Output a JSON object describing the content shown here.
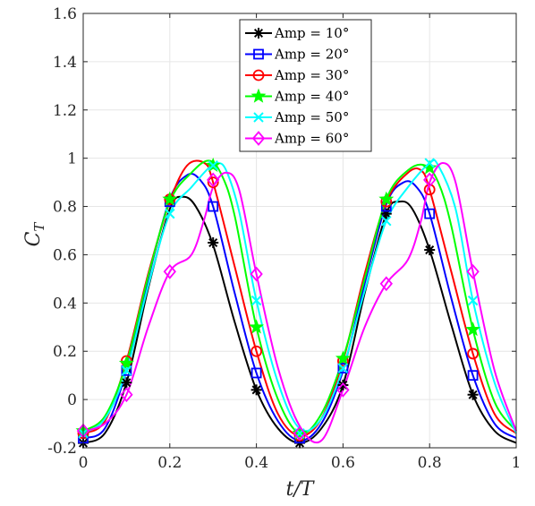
{
  "chart_data": {
    "type": "line",
    "xlabel": "t/T",
    "ylabel": "C",
    "ylabel_subscript": "T",
    "xlim": [
      0,
      1
    ],
    "ylim": [
      -0.2,
      1.6
    ],
    "xticks": [
      0,
      0.2,
      0.4,
      0.6,
      0.8,
      1
    ],
    "xtick_labels": [
      "0",
      "0.2",
      "0.4",
      "0.6",
      "0.8",
      "1"
    ],
    "yticks": [
      -0.2,
      0,
      0.2,
      0.4,
      0.6,
      0.8,
      1,
      1.2,
      1.4,
      1.6
    ],
    "ytick_labels": [
      "-0.2",
      "0",
      "0.2",
      "0.4",
      "0.6",
      "0.8",
      "1",
      "1.2",
      "1.4",
      "1.6"
    ],
    "grid": true,
    "legend_position": "top-center",
    "marker_x": [
      0,
      0.1,
      0.2,
      0.3,
      0.4,
      0.5,
      0.6,
      0.7,
      0.8,
      0.9
    ],
    "series": [
      {
        "name": "Amp = 10°",
        "color": "#000000",
        "marker": "asterisk",
        "x": [
          0,
          0.05,
          0.1,
          0.15,
          0.2,
          0.23,
          0.26,
          0.3,
          0.35,
          0.4,
          0.45,
          0.5,
          0.55,
          0.6,
          0.65,
          0.7,
          0.73,
          0.76,
          0.8,
          0.85,
          0.9,
          0.95,
          1.0
        ],
        "y": [
          -0.18,
          -0.14,
          0.07,
          0.46,
          0.79,
          0.84,
          0.8,
          0.64,
          0.32,
          0.04,
          -0.12,
          -0.18,
          -0.12,
          0.06,
          0.44,
          0.77,
          0.82,
          0.79,
          0.62,
          0.31,
          0.02,
          -0.13,
          -0.18
        ],
        "markers": [
          -0.18,
          0.07,
          0.83,
          0.65,
          0.04,
          -0.18,
          0.06,
          0.77,
          0.62,
          0.02
        ]
      },
      {
        "name": "Amp = 20°",
        "color": "#0000FF",
        "marker": "square",
        "x": [
          0,
          0.05,
          0.1,
          0.15,
          0.2,
          0.24,
          0.27,
          0.3,
          0.35,
          0.4,
          0.45,
          0.5,
          0.55,
          0.6,
          0.65,
          0.7,
          0.74,
          0.77,
          0.8,
          0.85,
          0.9,
          0.95,
          1.0
        ],
        "y": [
          -0.16,
          -0.12,
          0.12,
          0.5,
          0.83,
          0.93,
          0.91,
          0.8,
          0.44,
          0.11,
          -0.09,
          -0.17,
          -0.1,
          0.12,
          0.48,
          0.81,
          0.9,
          0.88,
          0.77,
          0.42,
          0.1,
          -0.1,
          -0.16
        ],
        "markers": [
          -0.16,
          0.12,
          0.82,
          0.8,
          0.11,
          -0.16,
          0.13,
          0.8,
          0.77,
          0.1
        ]
      },
      {
        "name": "Amp = 30°",
        "color": "#FF0000",
        "marker": "circle",
        "x": [
          0,
          0.05,
          0.1,
          0.15,
          0.2,
          0.24,
          0.28,
          0.3,
          0.35,
          0.4,
          0.45,
          0.5,
          0.55,
          0.6,
          0.65,
          0.7,
          0.75,
          0.78,
          0.8,
          0.85,
          0.9,
          0.95,
          1.0
        ],
        "y": [
          -0.14,
          -0.09,
          0.16,
          0.52,
          0.82,
          0.97,
          0.98,
          0.9,
          0.55,
          0.2,
          -0.06,
          -0.15,
          -0.08,
          0.16,
          0.52,
          0.82,
          0.94,
          0.95,
          0.87,
          0.53,
          0.19,
          -0.06,
          -0.14
        ],
        "markers": [
          -0.14,
          0.16,
          0.83,
          0.9,
          0.2,
          -0.15,
          0.16,
          0.82,
          0.87,
          0.19
        ]
      },
      {
        "name": "Amp = 40°",
        "color": "#00FF00",
        "marker": "pentagram",
        "x": [
          0,
          0.05,
          0.1,
          0.15,
          0.2,
          0.25,
          0.29,
          0.32,
          0.35,
          0.4,
          0.45,
          0.5,
          0.55,
          0.6,
          0.65,
          0.7,
          0.75,
          0.79,
          0.82,
          0.85,
          0.9,
          0.95,
          1.0
        ],
        "y": [
          -0.13,
          -0.07,
          0.15,
          0.51,
          0.82,
          0.94,
          0.99,
          0.93,
          0.76,
          0.3,
          0.0,
          -0.14,
          -0.06,
          0.17,
          0.5,
          0.83,
          0.95,
          0.97,
          0.9,
          0.72,
          0.29,
          -0.01,
          -0.13
        ],
        "markers": [
          -0.13,
          0.15,
          0.83,
          0.97,
          0.3,
          -0.14,
          0.17,
          0.83,
          0.96,
          0.29
        ]
      },
      {
        "name": "Amp = 50°",
        "color": "#00FFFF",
        "marker": "x",
        "x": [
          0,
          0.05,
          0.1,
          0.15,
          0.2,
          0.25,
          0.29,
          0.31,
          0.33,
          0.36,
          0.4,
          0.45,
          0.5,
          0.55,
          0.6,
          0.65,
          0.7,
          0.75,
          0.8,
          0.82,
          0.86,
          0.9,
          0.95,
          1.0
        ],
        "y": [
          -0.14,
          -0.08,
          0.12,
          0.47,
          0.77,
          0.88,
          0.96,
          0.98,
          0.95,
          0.78,
          0.41,
          0.07,
          -0.12,
          -0.08,
          0.13,
          0.45,
          0.74,
          0.88,
          0.98,
          0.97,
          0.79,
          0.41,
          0.07,
          -0.14
        ],
        "markers": [
          -0.14,
          0.12,
          0.77,
          0.97,
          0.41,
          -0.14,
          0.13,
          0.74,
          0.98,
          0.41
        ]
      },
      {
        "name": "Amp = 60°",
        "color": "#FF00FF",
        "marker": "diamond",
        "x": [
          0,
          0.05,
          0.1,
          0.15,
          0.2,
          0.25,
          0.28,
          0.3,
          0.33,
          0.36,
          0.4,
          0.45,
          0.5,
          0.55,
          0.6,
          0.65,
          0.7,
          0.75,
          0.78,
          0.8,
          0.83,
          0.86,
          0.9,
          0.95,
          1.0
        ],
        "y": [
          -0.13,
          -0.1,
          0.02,
          0.3,
          0.53,
          0.6,
          0.75,
          0.88,
          0.94,
          0.87,
          0.52,
          0.13,
          -0.11,
          -0.17,
          0.04,
          0.3,
          0.48,
          0.58,
          0.74,
          0.9,
          0.98,
          0.9,
          0.53,
          0.12,
          -0.13
        ],
        "markers": [
          -0.13,
          0.02,
          0.53,
          0.91,
          0.52,
          -0.14,
          0.04,
          0.48,
          0.91,
          0.53
        ]
      }
    ]
  }
}
